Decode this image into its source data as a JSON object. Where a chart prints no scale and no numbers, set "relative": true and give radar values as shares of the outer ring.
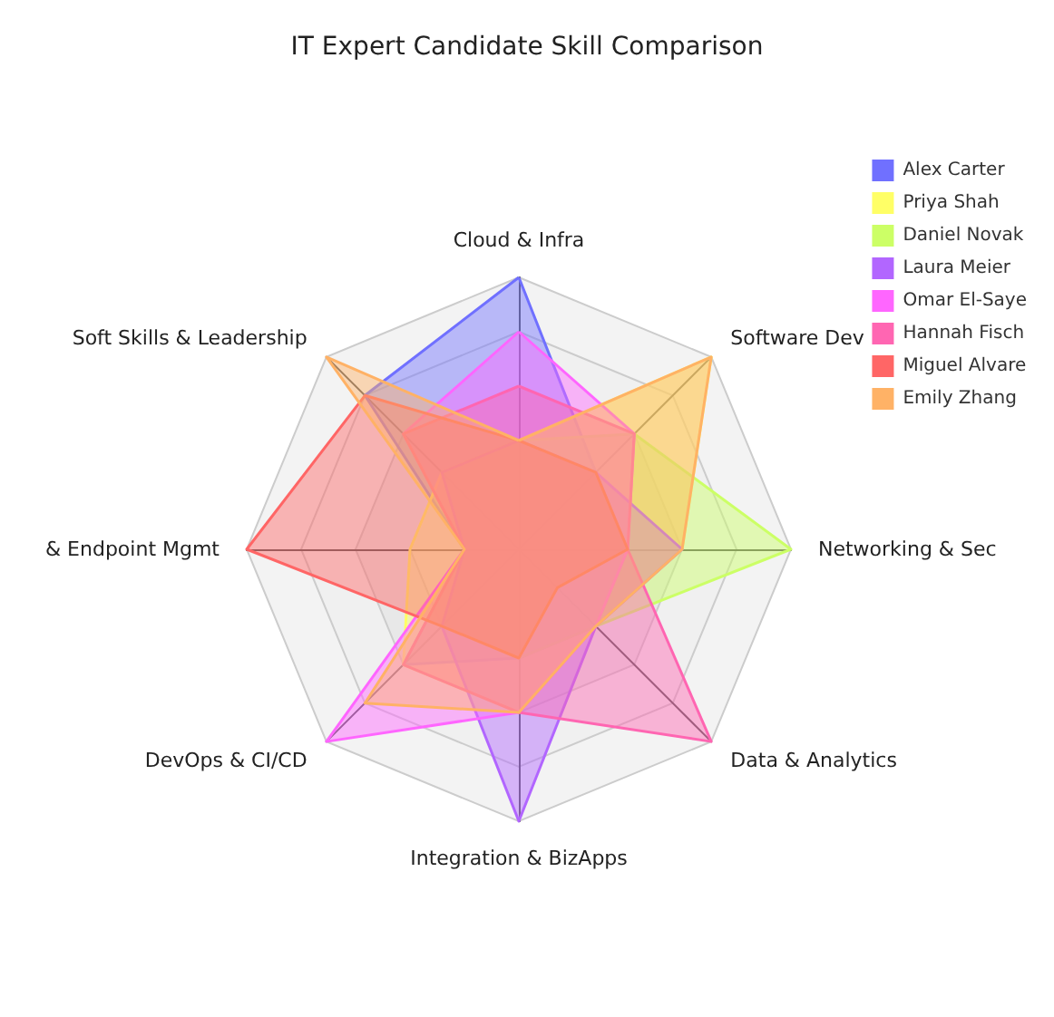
{
  "chart_data": {
    "type": "radar",
    "title": "IT Expert Candidate Skill Comparison",
    "relative": true,
    "legend": "top right",
    "categories": [
      "Cloud & Infra",
      "Software Dev",
      "Networking & Sec",
      "Data & Analytics",
      "Integration & BizApps",
      "DevOps & CI/CD",
      "& Endpoint Mgmt",
      "Soft Skills & Leadership"
    ],
    "series": [
      {
        "name": "Alex Carter",
        "color": "#7070ff",
        "values": [
          1.0,
          0.4,
          0.4,
          0.4,
          0.4,
          0.6,
          0.2,
          0.8
        ]
      },
      {
        "name": "Priya Shah",
        "color": "#ffff66",
        "values": [
          0.4,
          1.0,
          0.6,
          0.4,
          0.6,
          0.6,
          0.4,
          0.4
        ]
      },
      {
        "name": "Daniel Novak",
        "color": "#ccff66",
        "values": [
          0.4,
          0.6,
          1.0,
          0.4,
          0.4,
          0.4,
          0.2,
          0.4
        ]
      },
      {
        "name": "Laura Meier",
        "color": "#b266ff",
        "values": [
          0.4,
          0.4,
          0.6,
          0.4,
          1.0,
          0.4,
          0.2,
          0.4
        ]
      },
      {
        "name": "Omar El-Saye",
        "color": "#ff66ff",
        "values": [
          0.8,
          0.6,
          0.4,
          0.4,
          0.6,
          1.0,
          0.2,
          0.6
        ]
      },
      {
        "name": "Hannah Fisch",
        "color": "#ff66b2",
        "values": [
          0.6,
          0.6,
          0.4,
          1.0,
          0.6,
          0.6,
          0.2,
          0.6
        ]
      },
      {
        "name": "Miguel Alvare",
        "color": "#ff6666",
        "values": [
          0.4,
          0.4,
          0.4,
          0.2,
          0.4,
          0.4,
          1.0,
          0.8
        ]
      },
      {
        "name": "Emily Zhang",
        "color": "#ffb266",
        "values": [
          0.4,
          1.0,
          0.6,
          0.4,
          0.6,
          0.8,
          0.2,
          1.0
        ]
      }
    ]
  }
}
